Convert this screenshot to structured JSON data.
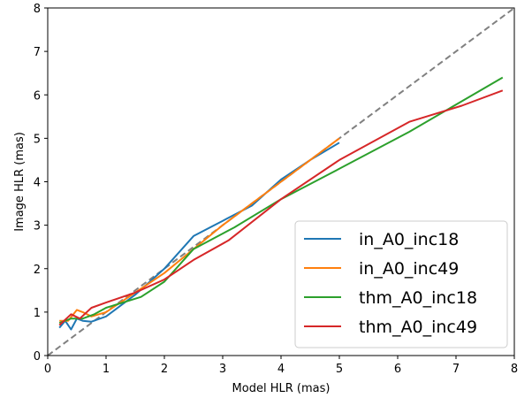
{
  "chart_data": {
    "type": "line",
    "xlabel": "Model HLR (mas)",
    "ylabel": "Image HLR (mas)",
    "xlim": [
      0,
      8
    ],
    "ylim": [
      0,
      8
    ],
    "xticks": [
      0,
      1,
      2,
      3,
      4,
      5,
      6,
      7,
      8
    ],
    "yticks": [
      0,
      1,
      2,
      3,
      4,
      5,
      6,
      7,
      8
    ],
    "grid": false,
    "legend_position": "lower-right",
    "reference_line": {
      "style": "dashed",
      "color": "#808080",
      "points": [
        [
          0,
          0
        ],
        [
          8,
          8
        ]
      ]
    },
    "series": [
      {
        "name": "in_A0_inc18",
        "color": "#1f77b4",
        "points": [
          [
            0.2,
            0.64
          ],
          [
            0.3,
            0.8
          ],
          [
            0.4,
            0.6
          ],
          [
            0.5,
            0.85
          ],
          [
            0.6,
            0.8
          ],
          [
            0.75,
            0.78
          ],
          [
            1.0,
            0.9
          ],
          [
            1.5,
            1.4
          ],
          [
            2.0,
            2.0
          ],
          [
            2.5,
            2.75
          ],
          [
            3.0,
            3.1
          ],
          [
            3.5,
            3.45
          ],
          [
            4.0,
            4.05
          ],
          [
            4.5,
            4.5
          ],
          [
            5.0,
            4.9
          ]
        ]
      },
      {
        "name": "in_A0_inc49",
        "color": "#ff7f0e",
        "points": [
          [
            0.2,
            0.8
          ],
          [
            0.35,
            0.8
          ],
          [
            0.5,
            1.05
          ],
          [
            0.6,
            1.0
          ],
          [
            0.75,
            0.9
          ],
          [
            1.0,
            1.0
          ],
          [
            1.5,
            1.45
          ],
          [
            2.0,
            1.9
          ],
          [
            2.5,
            2.45
          ],
          [
            3.0,
            3.0
          ],
          [
            3.5,
            3.5
          ],
          [
            4.0,
            4.0
          ],
          [
            4.5,
            4.5
          ],
          [
            5.0,
            5.0
          ]
        ]
      },
      {
        "name": "thm_A0_inc18",
        "color": "#2ca02c",
        "points": [
          [
            0.2,
            0.75
          ],
          [
            0.4,
            0.85
          ],
          [
            0.6,
            0.85
          ],
          [
            0.8,
            0.95
          ],
          [
            1.0,
            1.1
          ],
          [
            1.6,
            1.35
          ],
          [
            2.0,
            1.7
          ],
          [
            2.5,
            2.45
          ],
          [
            3.2,
            2.95
          ],
          [
            4.0,
            3.6
          ],
          [
            5.0,
            4.3
          ],
          [
            6.2,
            5.15
          ],
          [
            7.8,
            6.4
          ]
        ]
      },
      {
        "name": "thm_A0_inc49",
        "color": "#d62728",
        "points": [
          [
            0.2,
            0.7
          ],
          [
            0.4,
            0.95
          ],
          [
            0.55,
            0.85
          ],
          [
            0.75,
            1.1
          ],
          [
            1.0,
            1.22
          ],
          [
            1.5,
            1.45
          ],
          [
            2.0,
            1.75
          ],
          [
            2.5,
            2.2
          ],
          [
            3.1,
            2.65
          ],
          [
            4.0,
            3.6
          ],
          [
            5.0,
            4.5
          ],
          [
            6.2,
            5.38
          ],
          [
            7.1,
            5.75
          ],
          [
            7.8,
            6.1
          ]
        ]
      }
    ]
  }
}
